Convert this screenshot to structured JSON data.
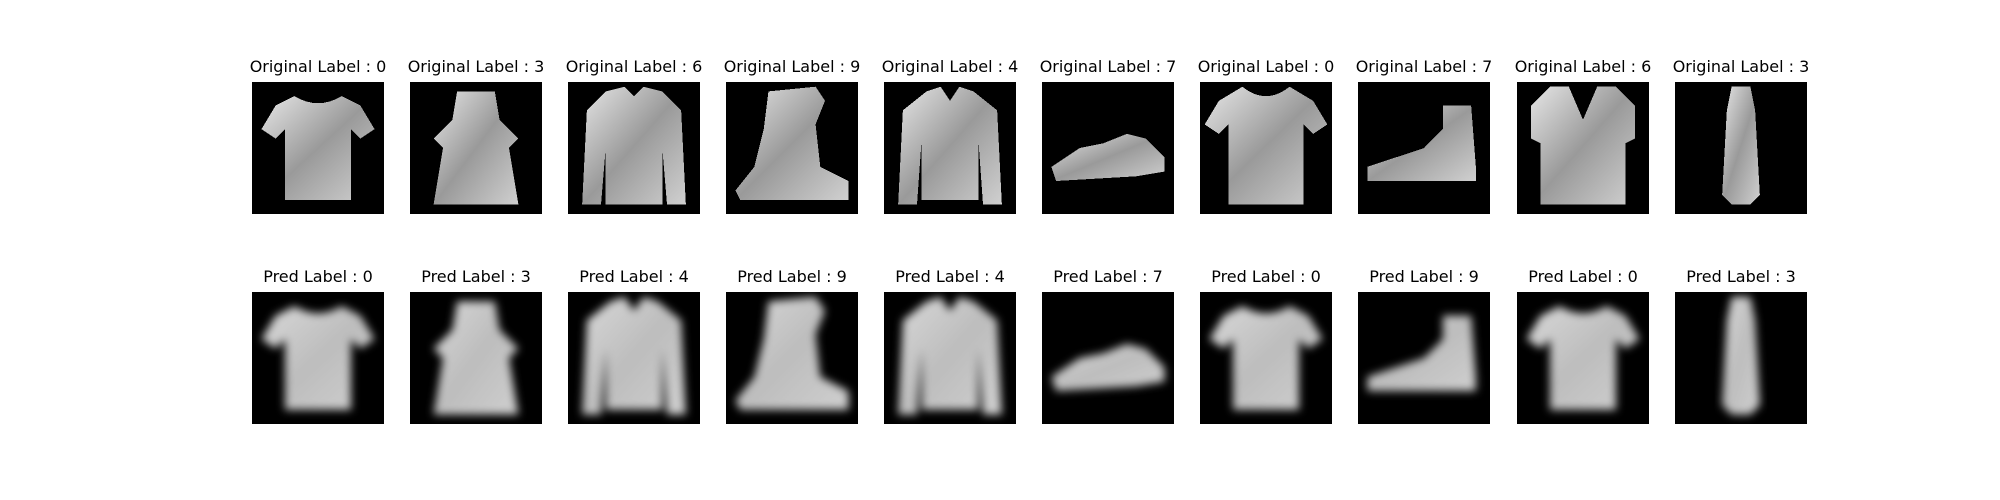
{
  "rows": [
    {
      "prefix": "Original Label : ",
      "items": [
        {
          "label": "0",
          "item": "tshirt",
          "style": "sharp"
        },
        {
          "label": "3",
          "item": "dress",
          "style": "sharp"
        },
        {
          "label": "6",
          "item": "shirt",
          "style": "sharp"
        },
        {
          "label": "9",
          "item": "boot",
          "style": "sharp"
        },
        {
          "label": "4",
          "item": "coat",
          "style": "sharp"
        },
        {
          "label": "7",
          "item": "sneaker",
          "style": "sharp"
        },
        {
          "label": "0",
          "item": "tshirt-dark",
          "style": "sharp"
        },
        {
          "label": "7",
          "item": "sneaker-high",
          "style": "sharp"
        },
        {
          "label": "6",
          "item": "top",
          "style": "sharp"
        },
        {
          "label": "3",
          "item": "dress-slim",
          "style": "sharp"
        }
      ]
    },
    {
      "prefix": "Pred Label : ",
      "items": [
        {
          "label": "0",
          "item": "tshirt",
          "style": "blurry"
        },
        {
          "label": "3",
          "item": "dress",
          "style": "blurry"
        },
        {
          "label": "4",
          "item": "coat",
          "style": "blurry"
        },
        {
          "label": "9",
          "item": "boot",
          "style": "blurry"
        },
        {
          "label": "4",
          "item": "coat",
          "style": "blurry"
        },
        {
          "label": "7",
          "item": "sneaker",
          "style": "blurry"
        },
        {
          "label": "0",
          "item": "tshirt",
          "style": "blurry"
        },
        {
          "label": "9",
          "item": "sneaker-high",
          "style": "blurry"
        },
        {
          "label": "0",
          "item": "tshirt",
          "style": "blurry"
        },
        {
          "label": "3",
          "item": "dress-slim",
          "style": "blurry"
        }
      ]
    }
  ]
}
